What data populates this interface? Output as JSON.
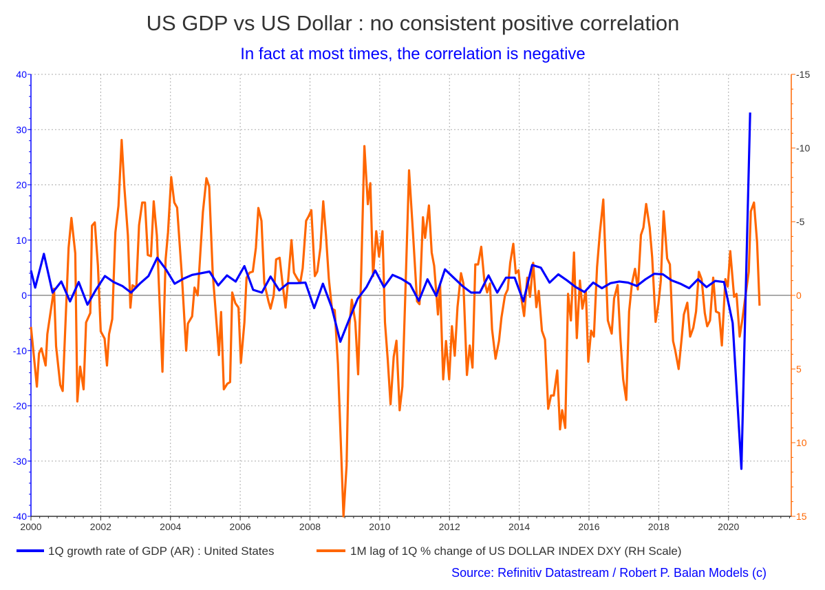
{
  "chart_data": {
    "type": "line",
    "title": "US GDP vs US Dollar : no consistent positive correlation",
    "subtitle": "In fact at most times, the correlation is negative",
    "source": "Source: Refinitiv Datastream /  Robert P. Balan Models (c)",
    "xlim": [
      2000,
      2021.8
    ],
    "x_ticks": [
      "2000",
      "2002",
      "2004",
      "2006",
      "2008",
      "2010",
      "2012",
      "2014",
      "2016",
      "2018",
      "2020"
    ],
    "y_left": {
      "lim": [
        -40,
        40
      ],
      "ticks": [
        "40",
        "30",
        "20",
        "10",
        "0",
        "-10",
        "-20",
        "-30",
        "-40"
      ],
      "color": "#0000ff"
    },
    "y_right": {
      "lim": [
        -15,
        15
      ],
      "inverted": true,
      "ticks": [
        "-15",
        "-10",
        "-5",
        "0",
        "5",
        "10",
        "15"
      ],
      "color": "#ff6600"
    },
    "grid": true,
    "legend_placement": "bottom",
    "series": [
      {
        "name": "1Q growth rate of GDP (AR) : United States",
        "axis": "left",
        "color": "#0000ff",
        "x": [
          2000.0,
          2000.12,
          2000.37,
          2000.62,
          2000.87,
          2001.12,
          2001.37,
          2001.62,
          2001.87,
          2002.12,
          2002.37,
          2002.62,
          2002.87,
          2003.12,
          2003.37,
          2003.62,
          2003.87,
          2004.12,
          2004.37,
          2004.62,
          2004.87,
          2005.12,
          2005.37,
          2005.62,
          2005.87,
          2006.12,
          2006.37,
          2006.62,
          2006.87,
          2007.12,
          2007.37,
          2007.62,
          2007.87,
          2008.12,
          2008.37,
          2008.62,
          2008.87,
          2009.12,
          2009.37,
          2009.62,
          2009.87,
          2010.12,
          2010.37,
          2010.62,
          2010.87,
          2011.12,
          2011.37,
          2011.62,
          2011.87,
          2012.12,
          2012.37,
          2012.62,
          2012.87,
          2013.12,
          2013.37,
          2013.62,
          2013.87,
          2014.12,
          2014.37,
          2014.62,
          2014.87,
          2015.12,
          2015.37,
          2015.62,
          2015.87,
          2016.12,
          2016.37,
          2016.62,
          2016.87,
          2017.12,
          2017.37,
          2017.62,
          2017.87,
          2018.12,
          2018.37,
          2018.62,
          2018.87,
          2019.12,
          2019.37,
          2019.62,
          2019.87,
          2020.12,
          2020.37,
          2020.62
        ],
        "values": [
          4.5,
          1.4,
          7.5,
          0.5,
          2.5,
          -1.1,
          2.4,
          -1.7,
          1.1,
          3.5,
          2.4,
          1.7,
          0.5,
          2.1,
          3.5,
          6.8,
          4.7,
          2.1,
          3.0,
          3.7,
          4.0,
          4.3,
          1.8,
          3.6,
          2.5,
          5.3,
          1.0,
          0.5,
          3.4,
          0.9,
          2.2,
          2.2,
          2.3,
          -2.3,
          2.1,
          -2.1,
          -8.4,
          -4.4,
          -0.6,
          1.5,
          4.5,
          1.5,
          3.7,
          3.0,
          2.0,
          -1.0,
          2.9,
          -0.1,
          4.7,
          3.2,
          1.7,
          0.5,
          0.5,
          3.6,
          0.5,
          3.2,
          3.2,
          -1.1,
          5.5,
          5.0,
          2.3,
          3.8,
          2.7,
          1.5,
          0.6,
          2.3,
          1.3,
          2.2,
          2.5,
          2.3,
          1.7,
          2.9,
          3.9,
          3.8,
          2.7,
          2.1,
          1.3,
          2.9,
          1.5,
          2.6,
          2.4,
          -5.0,
          -31.4,
          33.1
        ]
      },
      {
        "name": "1M lag of 1Q % change of US DOLLAR INDEX DXY (RH Scale)",
        "axis": "right",
        "color": "#ff6600",
        "x": [
          2000.0,
          2000.17,
          2000.23,
          2000.3,
          2000.42,
          2000.47,
          2000.66,
          2000.72,
          2000.84,
          2000.91,
          2001.08,
          2001.16,
          2001.27,
          2001.33,
          2001.41,
          2001.51,
          2001.58,
          2001.7,
          2001.75,
          2001.83,
          2001.92,
          2002.0,
          2002.11,
          2002.18,
          2002.24,
          2002.33,
          2002.42,
          2002.51,
          2002.6,
          2002.68,
          2002.78,
          2002.85,
          2002.91,
          2003.02,
          2003.1,
          2003.19,
          2003.27,
          2003.35,
          2003.44,
          2003.52,
          2003.61,
          2003.77,
          2003.86,
          2003.93,
          2004.02,
          2004.11,
          2004.19,
          2004.33,
          2004.45,
          2004.5,
          2004.62,
          2004.69,
          2004.78,
          2004.93,
          2005.03,
          2005.11,
          2005.21,
          2005.29,
          2005.39,
          2005.45,
          2005.53,
          2005.63,
          2005.71,
          2005.77,
          2005.86,
          2005.95,
          2006.02,
          2006.12,
          2006.18,
          2006.27,
          2006.36,
          2006.45,
          2006.52,
          2006.61,
          2006.69,
          2006.81,
          2006.87,
          2006.96,
          2007.03,
          2007.13,
          2007.21,
          2007.3,
          2007.38,
          2007.47,
          2007.54,
          2007.62,
          2007.72,
          2007.79,
          2007.89,
          2007.96,
          2008.04,
          2008.14,
          2008.21,
          2008.3,
          2008.38,
          2008.46,
          2008.54,
          2008.63,
          2008.71,
          2008.8,
          2008.88,
          2008.96,
          2009.05,
          2009.13,
          2009.2,
          2009.3,
          2009.38,
          2009.47,
          2009.56,
          2009.66,
          2009.73,
          2009.81,
          2009.9,
          2009.98,
          2010.08,
          2010.15,
          2010.23,
          2010.31,
          2010.4,
          2010.48,
          2010.57,
          2010.65,
          2010.73,
          2010.84,
          2010.95,
          2011.07,
          2011.14,
          2011.24,
          2011.3,
          2011.41,
          2011.49,
          2011.56,
          2011.67,
          2011.73,
          2011.82,
          2011.9,
          2011.99,
          2012.07,
          2012.15,
          2012.23,
          2012.33,
          2012.4,
          2012.5,
          2012.58,
          2012.66,
          2012.74,
          2012.82,
          2012.91,
          2013.0,
          2013.08,
          2013.16,
          2013.22,
          2013.32,
          2013.42,
          2013.49,
          2013.59,
          2013.67,
          2013.74,
          2013.83,
          2013.9,
          2013.98,
          2014.06,
          2014.14,
          2014.23,
          2014.31,
          2014.4,
          2014.49,
          2014.56,
          2014.65,
          2014.74,
          2014.83,
          2014.91,
          2014.99,
          2015.09,
          2015.17,
          2015.23,
          2015.32,
          2015.4,
          2015.48,
          2015.57,
          2015.65,
          2015.74,
          2015.81,
          2015.91,
          2015.98,
          2016.06,
          2016.14,
          2016.23,
          2016.31,
          2016.41,
          2016.54,
          2016.65,
          2016.72,
          2016.82,
          2016.9,
          2016.98,
          2017.07,
          2017.15,
          2017.23,
          2017.32,
          2017.4,
          2017.49,
          2017.56,
          2017.64,
          2017.74,
          2017.81,
          2017.91,
          2017.99,
          2018.06,
          2018.14,
          2018.24,
          2018.32,
          2018.41,
          2018.47,
          2018.57,
          2018.65,
          2018.72,
          2018.82,
          2018.9,
          2018.99,
          2019.07,
          2019.15,
          2019.23,
          2019.32,
          2019.39,
          2019.47,
          2019.56,
          2019.64,
          2019.73,
          2019.81,
          2019.91,
          2019.98,
          2020.05,
          2020.16,
          2020.23,
          2020.32,
          2020.4,
          2020.5,
          2020.58,
          2020.64,
          2020.73,
          2020.82,
          2020.89
        ],
        "values": [
          2.14,
          6.19,
          3.94,
          3.6,
          4.76,
          2.63,
          -0.45,
          3.45,
          6.08,
          6.49,
          -3.23,
          -5.25,
          -2.85,
          7.2,
          4.84,
          6.38,
          1.84,
          1.2,
          -4.73,
          -4.95,
          -2.03,
          2.44,
          2.93,
          4.76,
          2.63,
          1.61,
          -4.28,
          -6.08,
          -10.54,
          -7.31,
          -4.05,
          0.83,
          -0.68,
          -0.53,
          -4.76,
          -6.3,
          -6.3,
          -2.74,
          -2.66,
          -6.38,
          -4.05,
          5.18,
          -2.44,
          -4.28,
          -8.03,
          -6.3,
          -5.96,
          -1.2,
          3.75,
          1.91,
          1.43,
          -0.53,
          0,
          -5.66,
          -7.95,
          -7.39,
          -1.54,
          0.9,
          4.05,
          1.13,
          6.38,
          6.0,
          5.89,
          -0.19,
          0.53,
          0.83,
          4.58,
          1.84,
          -1.2,
          -1.54,
          -1.61,
          -3.23,
          -5.93,
          -5.06,
          -0.83,
          0.41,
          0.9,
          0,
          -2.44,
          -2.55,
          -0.83,
          0.83,
          -1.2,
          -3.75,
          -1.54,
          -1.2,
          -0.83,
          -1.84,
          -5.06,
          -5.36,
          -5.78,
          -1.31,
          -1.61,
          -3.23,
          -6.38,
          -4.05,
          -1.13,
          0.9,
          1.01,
          4.65,
          9.71,
          15,
          11.55,
          2.03,
          0.3,
          1.84,
          5.36,
          -1.61,
          -10.13,
          -6.19,
          -7.61,
          -1.31,
          -4.35,
          -2.63,
          -4.35,
          1.84,
          4.35,
          7.39,
          4.16,
          3.08,
          7.8,
          6.19,
          0.19,
          -8.48,
          -4.4,
          0.4,
          0.6,
          -5.3,
          -3.9,
          -6.1,
          -2.9,
          -2.0,
          1.3,
          -0.7,
          5.7,
          3.1,
          5.7,
          2.1,
          4.1,
          0.8,
          -1.5,
          -0.8,
          5.4,
          3.4,
          4.9,
          -2.1,
          -2.1,
          -3.3,
          -1.0,
          -0.2,
          -0.8,
          2.3,
          4.3,
          3.1,
          1.5,
          0,
          -0.4,
          -2.2,
          -3.5,
          -1.5,
          -1.7,
          0.2,
          1.4,
          -1.2,
          0.1,
          -2.2,
          0.8,
          -0.3,
          2.4,
          3.0,
          7.7,
          6.8,
          6.8,
          5.1,
          9.1,
          7.8,
          9.0,
          -0.1,
          1.7,
          -2.9,
          2.9,
          -1.0,
          0.9,
          -0.3,
          4.5,
          2.4,
          2.8,
          -1.9,
          -4.2,
          -6.5,
          1.7,
          2.6,
          0.2,
          -0.7,
          2.9,
          5.7,
          7.1,
          1.1,
          -0.8,
          -1.8,
          -0.4,
          -4.1,
          -4.6,
          -6.2,
          -4.6,
          -2.6,
          1.8,
          0.6,
          -1.0,
          -5.7,
          -2.5,
          -2.1,
          3.1,
          3.7,
          5.0,
          3.1,
          1.3,
          0.5,
          2.8,
          2.2,
          1.1,
          -1.6,
          -1.1,
          1.2,
          2.1,
          1.7,
          -1.2,
          1.1,
          1.2,
          3.4,
          -1.1,
          -0.6,
          -3.0,
          0.1,
          -0.1,
          2.8,
          1.6,
          -0.2,
          -1.6,
          -5.7,
          -6.3,
          -3.6,
          0.7
        ]
      }
    ]
  }
}
